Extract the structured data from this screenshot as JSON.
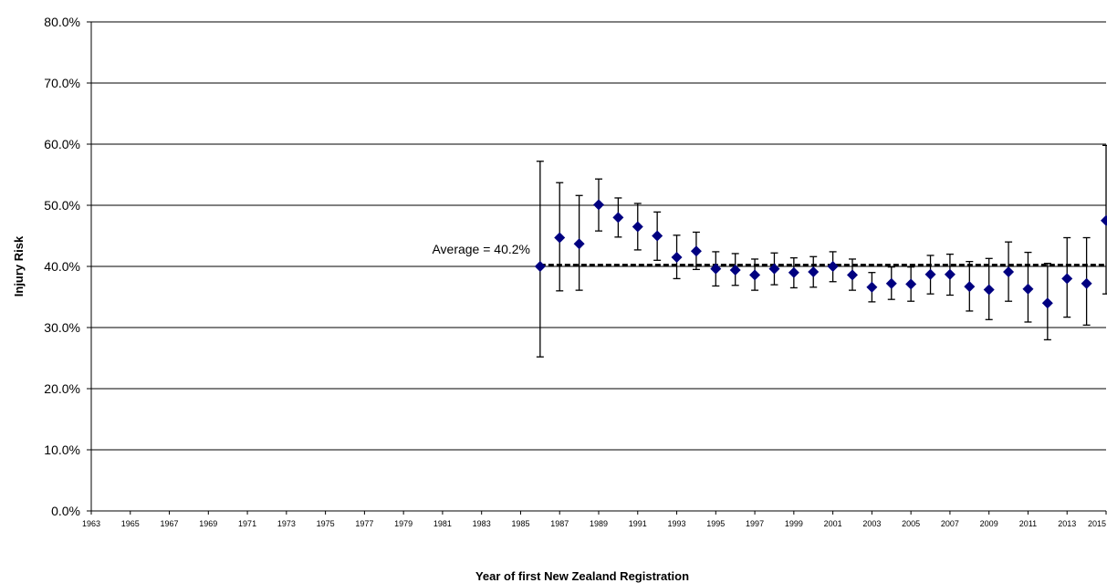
{
  "chart_data": {
    "type": "scatter",
    "ylabel": "Injury Risk",
    "xlabel": "Year of first New Zealand Registration",
    "ylim": [
      0,
      0.8
    ],
    "xlim": [
      1963,
      2015
    ],
    "y_ticks": [
      "0.0%",
      "10.0%",
      "20.0%",
      "30.0%",
      "40.0%",
      "50.0%",
      "60.0%",
      "70.0%",
      "80.0%"
    ],
    "x_ticks": [
      "1963",
      "1965",
      "1967",
      "1969",
      "1971",
      "1973",
      "1975",
      "1977",
      "1979",
      "1981",
      "1983",
      "1985",
      "1987",
      "1989",
      "1991",
      "1993",
      "1995",
      "1997",
      "1999",
      "2001",
      "2003",
      "2005",
      "2007",
      "2009",
      "2011",
      "2013",
      "2015"
    ],
    "grid": "horizontal",
    "marker_color": "#000080",
    "average": {
      "value": 0.402,
      "label": "Average = 40.2%"
    },
    "points": [
      {
        "x": 1986,
        "y": 0.4,
        "low": 0.252,
        "high": 0.572
      },
      {
        "x": 1987,
        "y": 0.447,
        "low": 0.36,
        "high": 0.537
      },
      {
        "x": 1988,
        "y": 0.437,
        "low": 0.361,
        "high": 0.516
      },
      {
        "x": 1989,
        "y": 0.501,
        "low": 0.458,
        "high": 0.543
      },
      {
        "x": 1990,
        "y": 0.48,
        "low": 0.448,
        "high": 0.512
      },
      {
        "x": 1991,
        "y": 0.465,
        "low": 0.427,
        "high": 0.503
      },
      {
        "x": 1992,
        "y": 0.45,
        "low": 0.41,
        "high": 0.489
      },
      {
        "x": 1993,
        "y": 0.415,
        "low": 0.38,
        "high": 0.451
      },
      {
        "x": 1994,
        "y": 0.425,
        "low": 0.395,
        "high": 0.456
      },
      {
        "x": 1995,
        "y": 0.396,
        "low": 0.368,
        "high": 0.424
      },
      {
        "x": 1996,
        "y": 0.394,
        "low": 0.369,
        "high": 0.421
      },
      {
        "x": 1997,
        "y": 0.386,
        "low": 0.361,
        "high": 0.412
      },
      {
        "x": 1998,
        "y": 0.396,
        "low": 0.37,
        "high": 0.422
      },
      {
        "x": 1999,
        "y": 0.39,
        "low": 0.365,
        "high": 0.414
      },
      {
        "x": 2000,
        "y": 0.391,
        "low": 0.366,
        "high": 0.416
      },
      {
        "x": 2001,
        "y": 0.4,
        "low": 0.375,
        "high": 0.424
      },
      {
        "x": 2002,
        "y": 0.386,
        "low": 0.361,
        "high": 0.412
      },
      {
        "x": 2003,
        "y": 0.366,
        "low": 0.342,
        "high": 0.39
      },
      {
        "x": 2004,
        "y": 0.372,
        "low": 0.346,
        "high": 0.399
      },
      {
        "x": 2005,
        "y": 0.371,
        "low": 0.343,
        "high": 0.399
      },
      {
        "x": 2006,
        "y": 0.387,
        "low": 0.355,
        "high": 0.418
      },
      {
        "x": 2007,
        "y": 0.387,
        "low": 0.353,
        "high": 0.42
      },
      {
        "x": 2008,
        "y": 0.367,
        "low": 0.327,
        "high": 0.408
      },
      {
        "x": 2009,
        "y": 0.362,
        "low": 0.313,
        "high": 0.413
      },
      {
        "x": 2010,
        "y": 0.391,
        "low": 0.343,
        "high": 0.44
      },
      {
        "x": 2011,
        "y": 0.363,
        "low": 0.309,
        "high": 0.423
      },
      {
        "x": 2012,
        "y": 0.34,
        "low": 0.28,
        "high": 0.405
      },
      {
        "x": 2013,
        "y": 0.38,
        "low": 0.317,
        "high": 0.447
      },
      {
        "x": 2014,
        "y": 0.372,
        "low": 0.304,
        "high": 0.447
      },
      {
        "x": 2015,
        "y": 0.475,
        "low": 0.355,
        "high": 0.598
      }
    ]
  }
}
